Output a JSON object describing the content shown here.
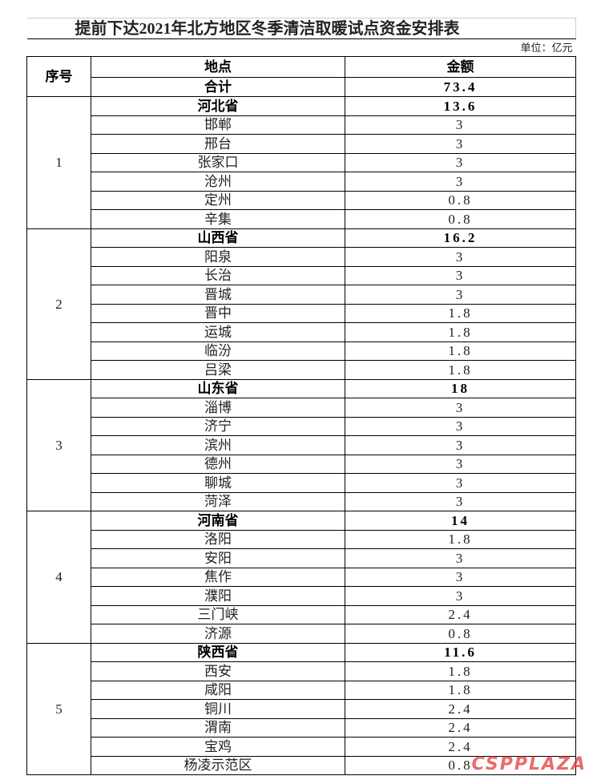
{
  "title": "提前下达2021年北方地区冬季清洁取暖试点资金安排表",
  "unit": "单位：亿元",
  "header": {
    "index": "序号",
    "place": "地点",
    "amount": "金额"
  },
  "total": {
    "label": "合计",
    "amount": 73.4
  },
  "groups": [
    {
      "index": 1,
      "province": "河北省",
      "amount": 13.6,
      "cities": [
        {
          "name": "邯郸",
          "amount": 3
        },
        {
          "name": "邢台",
          "amount": 3
        },
        {
          "name": "张家口",
          "amount": 3
        },
        {
          "name": "沧州",
          "amount": 3
        },
        {
          "name": "定州",
          "amount": 0.8
        },
        {
          "name": "辛集",
          "amount": 0.8
        }
      ]
    },
    {
      "index": 2,
      "province": "山西省",
      "amount": 16.2,
      "cities": [
        {
          "name": "阳泉",
          "amount": 3
        },
        {
          "name": "长治",
          "amount": 3
        },
        {
          "name": "晋城",
          "amount": 3
        },
        {
          "name": "晋中",
          "amount": 1.8
        },
        {
          "name": "运城",
          "amount": 1.8
        },
        {
          "name": "临汾",
          "amount": 1.8
        },
        {
          "name": "吕梁",
          "amount": 1.8
        }
      ]
    },
    {
      "index": 3,
      "province": "山东省",
      "amount": 18,
      "cities": [
        {
          "name": "淄博",
          "amount": 3
        },
        {
          "name": "济宁",
          "amount": 3
        },
        {
          "name": "滨州",
          "amount": 3
        },
        {
          "name": "德州",
          "amount": 3
        },
        {
          "name": "聊城",
          "amount": 3
        },
        {
          "name": "菏泽",
          "amount": 3
        }
      ]
    },
    {
      "index": 4,
      "province": "河南省",
      "amount": 14,
      "cities": [
        {
          "name": "洛阳",
          "amount": 1.8
        },
        {
          "name": "安阳",
          "amount": 3
        },
        {
          "name": "焦作",
          "amount": 3
        },
        {
          "name": "濮阳",
          "amount": 3
        },
        {
          "name": "三门峡",
          "amount": 2.4
        },
        {
          "name": "济源",
          "amount": 0.8
        }
      ]
    },
    {
      "index": 5,
      "province": "陕西省",
      "amount": 11.6,
      "cities": [
        {
          "name": "西安",
          "amount": 1.8
        },
        {
          "name": "咸阳",
          "amount": 1.8
        },
        {
          "name": "铜川",
          "amount": 2.4
        },
        {
          "name": "渭南",
          "amount": 2.4
        },
        {
          "name": "宝鸡",
          "amount": 2.4
        },
        {
          "name": "杨凌示范区",
          "amount": 0.8
        }
      ]
    }
  ],
  "watermark": "CSPPLAZA"
}
